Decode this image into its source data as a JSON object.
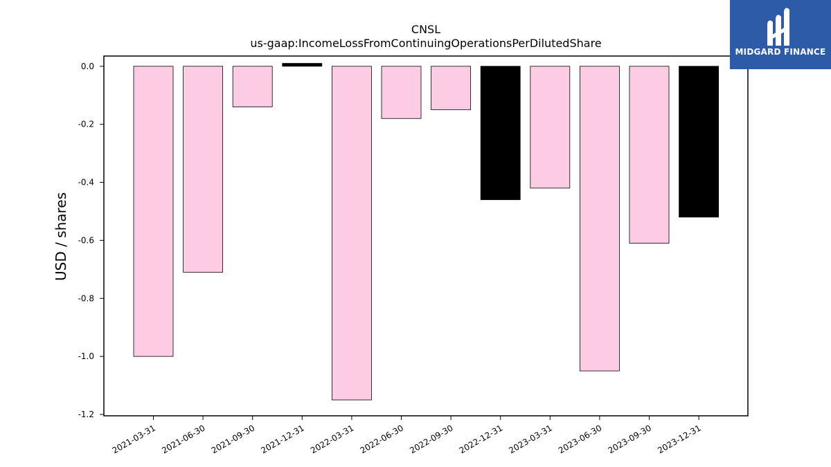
{
  "chart_data": {
    "type": "bar",
    "title": "CNSL",
    "subtitle": "us-gaap:IncomeLossFromContinuingOperationsPerDilutedShare",
    "xlabel": "",
    "ylabel": "USD / shares",
    "ylim": [
      -1.2,
      0.04
    ],
    "yticks": [
      "0.0",
      "-0.2",
      "-0.4",
      "-0.6",
      "-0.8",
      "-1.0",
      "-1.2"
    ],
    "ytick_values": [
      0.0,
      -0.2,
      -0.4,
      -0.6,
      -0.8,
      -1.0,
      -1.2
    ],
    "categories": [
      "2021-03-31",
      "2021-06-30",
      "2021-09-30",
      "2021-12-31",
      "2022-03-31",
      "2022-06-30",
      "2022-09-30",
      "2022-12-31",
      "2023-03-31",
      "2023-06-30",
      "2023-09-30",
      "2023-12-31"
    ],
    "values": [
      -1.0,
      -0.71,
      -0.14,
      0.01,
      -1.15,
      -0.18,
      -0.15,
      -0.46,
      -0.42,
      -1.05,
      -0.61,
      -0.52
    ],
    "bar_colors": [
      "#fccbe4",
      "#fccbe4",
      "#fccbe4",
      "#000000",
      "#fccbe4",
      "#fccbe4",
      "#fccbe4",
      "#000000",
      "#fccbe4",
      "#fccbe4",
      "#fccbe4",
      "#000000"
    ],
    "grid": false
  },
  "logo": {
    "text": "MIDGARD FINANCE",
    "background": "#2d5ba8"
  }
}
